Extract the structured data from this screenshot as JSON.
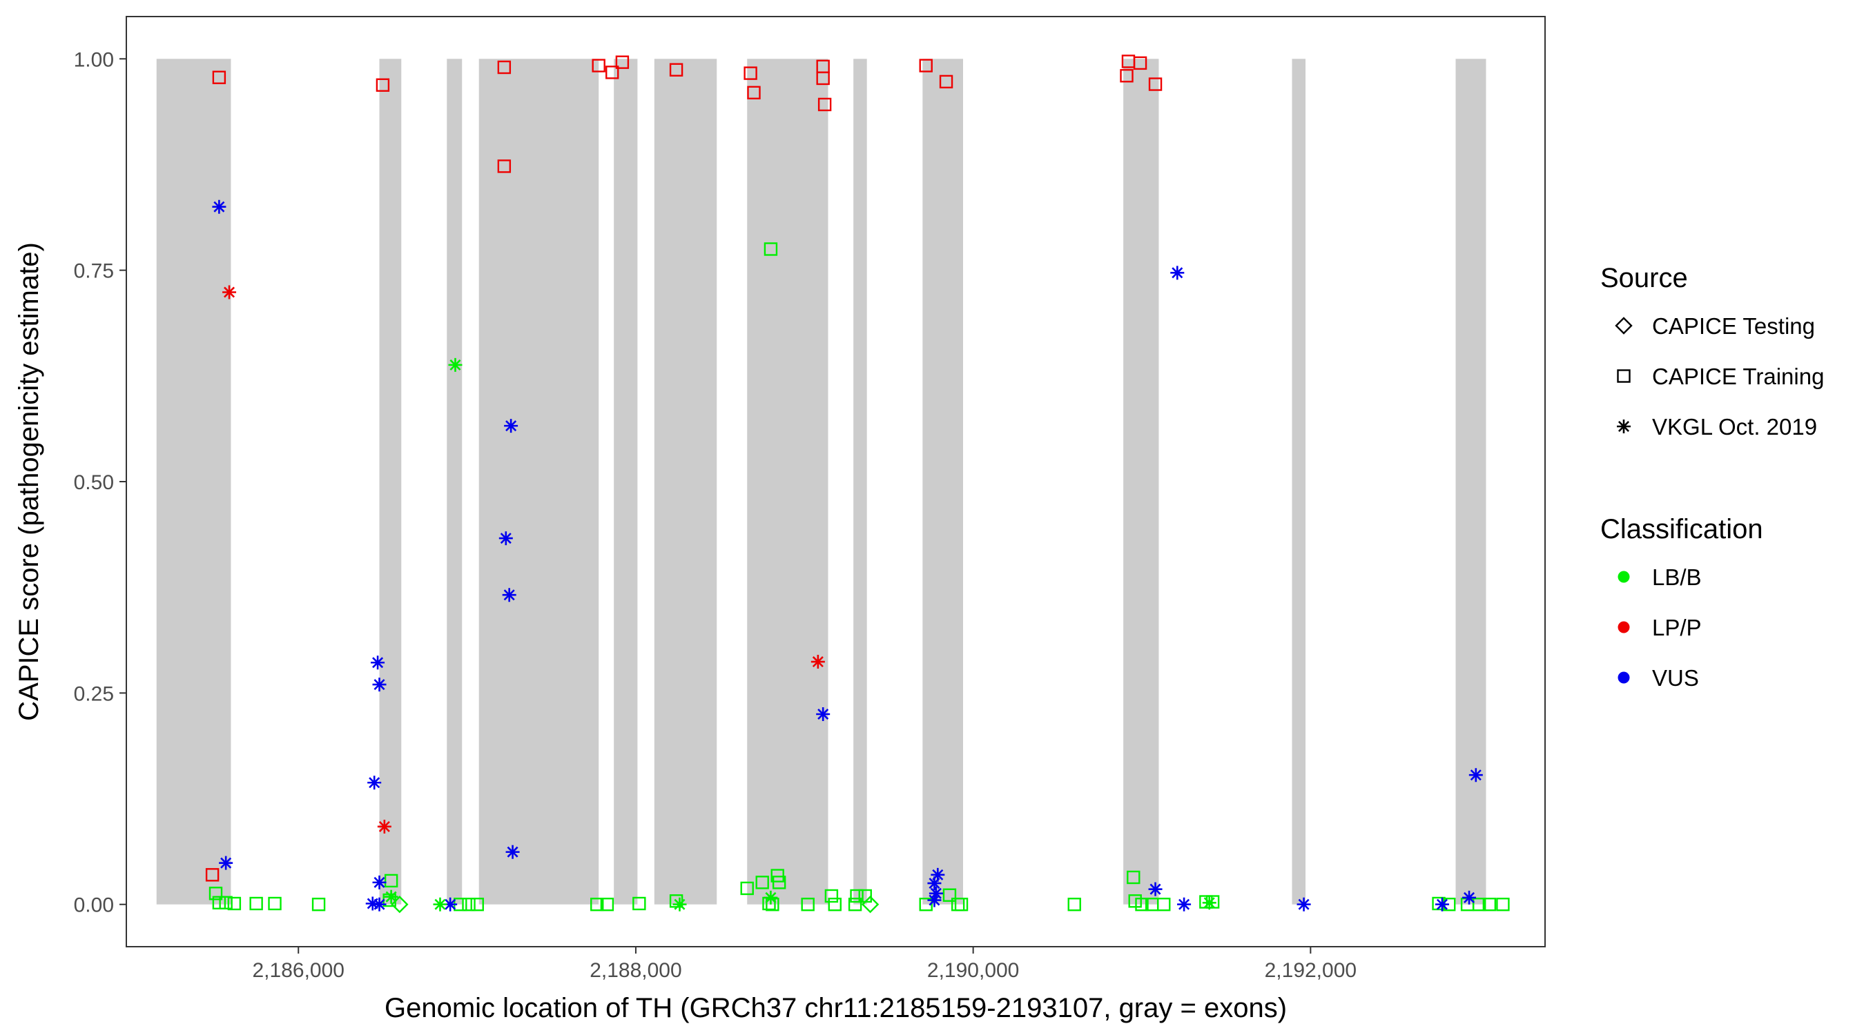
{
  "chart_data": {
    "type": "scatter",
    "xlabel": "Genomic location of TH (GRCh37 chr11:2185159-2193107, gray = exons)",
    "ylabel": "CAPICE score (pathogenicity estimate)",
    "xlim": [
      2184980,
      2193390
    ],
    "ylim": [
      -0.05,
      1.05
    ],
    "x_ticks": [
      2186000,
      2188000,
      2190000,
      2192000
    ],
    "x_tick_labels": [
      "2,186,000",
      "2,188,000",
      "2,190,000",
      "2,192,000"
    ],
    "y_ticks": [
      0,
      0.25,
      0.5,
      0.75,
      1
    ],
    "y_tick_labels": [
      "0.00",
      "0.25",
      "0.50",
      "0.75",
      "1.00"
    ],
    "grid": false,
    "exons": [
      [
        2185159,
        2185600
      ],
      [
        2186480,
        2186610
      ],
      [
        2186880,
        2186970
      ],
      [
        2187070,
        2187780
      ],
      [
        2187870,
        2188010
      ],
      [
        2188110,
        2188480
      ],
      [
        2188660,
        2189140
      ],
      [
        2189290,
        2189370
      ],
      [
        2189700,
        2189940
      ],
      [
        2190890,
        2191100
      ],
      [
        2191890,
        2191970
      ],
      [
        2192860,
        2193040
      ]
    ],
    "exon_color": "#cccccc",
    "legend": {
      "placement": "right",
      "source_title": "Source",
      "source_entries": [
        {
          "label": "CAPICE Testing",
          "shape": "diamond"
        },
        {
          "label": "CAPICE Training",
          "shape": "square"
        },
        {
          "label": "VKGL Oct. 2019",
          "shape": "asterisk"
        }
      ],
      "class_title": "Classification",
      "class_entries": [
        {
          "label": "LB/B",
          "color": "#00ee00"
        },
        {
          "label": "LP/P",
          "color": "#ee0000"
        },
        {
          "label": "VUS",
          "color": "#0000ee"
        }
      ]
    },
    "series": [
      {
        "source": "CAPICE Training",
        "classification": "LP/P",
        "points": [
          [
            2185530,
            0.978
          ],
          [
            2186500,
            0.969
          ],
          [
            2187220,
            0.99
          ],
          [
            2187220,
            0.873
          ],
          [
            2187780,
            0.992
          ],
          [
            2187860,
            0.984
          ],
          [
            2187920,
            0.996
          ],
          [
            2188240,
            0.987
          ],
          [
            2188680,
            0.983
          ],
          [
            2188700,
            0.96
          ],
          [
            2189110,
            0.991
          ],
          [
            2189110,
            0.977
          ],
          [
            2189120,
            0.946
          ],
          [
            2189720,
            0.992
          ],
          [
            2189840,
            0.973
          ],
          [
            2190920,
            0.997
          ],
          [
            2190910,
            0.98
          ],
          [
            2190990,
            0.995
          ],
          [
            2191080,
            0.97
          ],
          [
            2185490,
            0.035
          ]
        ]
      },
      {
        "source": "CAPICE Training",
        "classification": "LB/B",
        "points": [
          [
            2185510,
            0.013
          ],
          [
            2185530,
            0.002
          ],
          [
            2185570,
            0.002
          ],
          [
            2185620,
            0.001
          ],
          [
            2185750,
            0.001
          ],
          [
            2185860,
            0.001
          ],
          [
            2186120,
            0.0
          ],
          [
            2186550,
            0.028
          ],
          [
            2186540,
            0.005
          ],
          [
            2186960,
            0.0
          ],
          [
            2187010,
            0.0
          ],
          [
            2187060,
            0.0
          ],
          [
            2187770,
            0.0
          ],
          [
            2187830,
            0.0
          ],
          [
            2188020,
            0.001
          ],
          [
            2188240,
            0.004
          ],
          [
            2188660,
            0.019
          ],
          [
            2188750,
            0.026
          ],
          [
            2188810,
            0.0
          ],
          [
            2188790,
            0.001
          ],
          [
            2188840,
            0.034
          ],
          [
            2188850,
            0.026
          ],
          [
            2188800,
            0.775
          ],
          [
            2189020,
            0.0
          ],
          [
            2189160,
            0.01
          ],
          [
            2189180,
            0.0
          ],
          [
            2189310,
            0.01
          ],
          [
            2189360,
            0.01
          ],
          [
            2189300,
            0.0
          ],
          [
            2189720,
            0.0
          ],
          [
            2189860,
            0.011
          ],
          [
            2189910,
            0.0
          ],
          [
            2189930,
            0.0
          ],
          [
            2190600,
            0.0
          ],
          [
            2190950,
            0.032
          ],
          [
            2190960,
            0.004
          ],
          [
            2191000,
            0.0
          ],
          [
            2191060,
            0.0
          ],
          [
            2191130,
            0.0
          ],
          [
            2191380,
            0.003
          ],
          [
            2191420,
            0.003
          ],
          [
            2192760,
            0.001
          ],
          [
            2192820,
            0.0
          ],
          [
            2192930,
            0.0
          ],
          [
            2193000,
            0.0
          ],
          [
            2193060,
            0.0
          ],
          [
            2193140,
            0.0
          ]
        ]
      },
      {
        "source": "VKGL Oct. 2019",
        "classification": "VUS",
        "points": [
          [
            2185530,
            0.825
          ],
          [
            2185570,
            0.049
          ],
          [
            2186470,
            0.286
          ],
          [
            2186480,
            0.26
          ],
          [
            2186450,
            0.144
          ],
          [
            2186480,
            0.026
          ],
          [
            2186440,
            0.001
          ],
          [
            2186480,
            0.0
          ],
          [
            2186900,
            0.0
          ],
          [
            2187260,
            0.566
          ],
          [
            2187230,
            0.433
          ],
          [
            2187250,
            0.366
          ],
          [
            2187270,
            0.062
          ],
          [
            2189110,
            0.225
          ],
          [
            2189790,
            0.035
          ],
          [
            2189770,
            0.025
          ],
          [
            2189780,
            0.013
          ],
          [
            2189770,
            0.005
          ],
          [
            2191210,
            0.747
          ],
          [
            2191080,
            0.018
          ],
          [
            2191250,
            0.0
          ],
          [
            2191960,
            0.0
          ],
          [
            2192780,
            0.0
          ],
          [
            2192980,
            0.153
          ],
          [
            2192940,
            0.008
          ]
        ]
      },
      {
        "source": "VKGL Oct. 2019",
        "classification": "LP/P",
        "points": [
          [
            2185590,
            0.724
          ],
          [
            2186510,
            0.092
          ],
          [
            2189080,
            0.287
          ]
        ]
      },
      {
        "source": "VKGL Oct. 2019",
        "classification": "LB/B",
        "points": [
          [
            2186930,
            0.638
          ],
          [
            2186550,
            0.009
          ],
          [
            2186840,
            0.0
          ],
          [
            2188260,
            0.0
          ],
          [
            2188800,
            0.008
          ],
          [
            2191400,
            0.002
          ]
        ]
      },
      {
        "source": "CAPICE Testing",
        "classification": "LB/B",
        "points": [
          [
            2186600,
            0.0
          ],
          [
            2189390,
            0.0
          ]
        ]
      }
    ]
  }
}
